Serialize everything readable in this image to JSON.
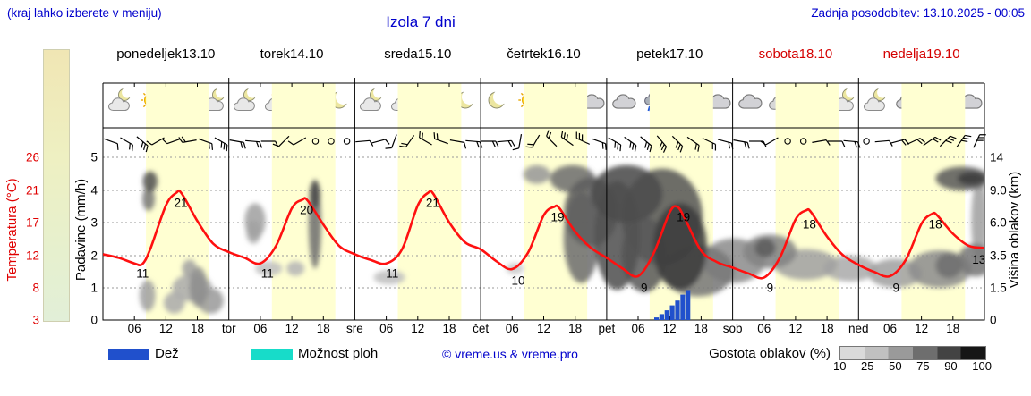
{
  "header": {
    "hint": "(kraj lahko izberete v meniju)",
    "title": "Izola 7 dni",
    "updated": "Zadnja posodobitev: 13.10.2025 - 00:05"
  },
  "left_scale": {
    "label": "Temperatura (°C)",
    "ticks": [
      "26",
      "21",
      "17",
      "12",
      "8",
      "3"
    ]
  },
  "precip_axis": {
    "label": "Padavine (mm/h)",
    "ticks": [
      "5",
      "4",
      "3",
      "2",
      "1",
      "0"
    ]
  },
  "cloud_axis": {
    "label": "Višina oblakov (km)",
    "ticks": [
      "14",
      "9.0",
      "6.0",
      "3.5",
      "1.5",
      "0"
    ]
  },
  "time_axis": {
    "hour_ticks": [
      "06",
      "12",
      "18"
    ],
    "day_abbrevs": [
      "tor",
      "sre",
      "čet",
      "pet",
      "sob",
      "ned"
    ]
  },
  "days": [
    {
      "name": "ponedeljek",
      "date": "13.10",
      "weekend": false,
      "icons": [
        "cloud-moon",
        "sun",
        "sun",
        "cloud-moon"
      ]
    },
    {
      "name": "torek",
      "date": "14.10",
      "weekend": false,
      "icons": [
        "cloud-moon",
        "sun-cloud",
        "sun-cloud",
        "moon"
      ]
    },
    {
      "name": "sreda",
      "date": "15.10",
      "weekend": false,
      "icons": [
        "cloud-moon",
        "sun-cloud",
        "sun",
        "moon"
      ]
    },
    {
      "name": "četrtek",
      "date": "16.10",
      "weekend": false,
      "icons": [
        "moon",
        "sun",
        "sun-cloud",
        "cloud"
      ]
    },
    {
      "name": "petek",
      "date": "17.10",
      "weekend": false,
      "icons": [
        "cloud",
        "rain",
        "rain",
        "cloud"
      ]
    },
    {
      "name": "sobota",
      "date": "18.10",
      "weekend": true,
      "icons": [
        "cloud",
        "cloud-sun",
        "cloud",
        "cloud-moon"
      ]
    },
    {
      "name": "nedelja",
      "date": "19.10",
      "weekend": true,
      "icons": [
        "cloud-moon",
        "cloud",
        "cloud-sun",
        "cloud"
      ]
    }
  ],
  "legend": {
    "rain": "Dež",
    "showers": "Možnost ploh",
    "copyright": "© vreme.us & vreme.pro",
    "cloud_density": "Gostota oblakov (%)",
    "density_ticks": [
      "10",
      "25",
      "50",
      "75",
      "90",
      "100"
    ]
  },
  "colors": {
    "accent_blue": "#0000CC",
    "weekend_red": "#D40000",
    "temp_red": "#FF1010",
    "rain_blue": "#2050CC",
    "shower_cyan": "#17DCC9",
    "day_band_yellow": "#FFFFD2"
  },
  "chart_data": {
    "type": "line",
    "title": "Izola 7 dni",
    "x_unit": "hours from Mon 13.10 00:00 (7 days, 24 h each)",
    "grid": true,
    "temperature": {
      "unit": "°C",
      "axis_range": [
        3,
        26
      ],
      "hours": [
        0,
        3,
        6,
        7.5,
        9,
        12,
        14,
        15,
        18,
        21,
        24,
        27,
        30,
        33,
        36,
        38,
        39,
        42,
        45,
        48,
        51,
        54,
        57,
        60,
        62,
        63,
        66,
        69,
        72,
        75,
        78,
        81,
        84,
        86,
        87,
        90,
        93,
        96,
        99,
        102,
        105,
        108,
        109.5,
        111,
        114,
        117,
        120,
        123,
        126,
        129,
        132,
        134,
        135,
        138,
        141,
        144,
        147,
        150,
        153,
        156,
        158,
        159,
        162,
        165,
        168
      ],
      "values": [
        12.3,
        11.8,
        11.0,
        10.9,
        13.0,
        19.2,
        21.0,
        20.9,
        17.0,
        13.8,
        12.6,
        11.8,
        11.0,
        13.5,
        18.8,
        20.0,
        19.9,
        16.5,
        13.5,
        12.3,
        11.5,
        11.0,
        13.0,
        19.2,
        21.0,
        20.8,
        16.8,
        14.0,
        13.0,
        11.3,
        10.2,
        12.5,
        17.8,
        19.0,
        18.8,
        15.5,
        13.2,
        11.8,
        10.3,
        9.2,
        12.5,
        18.2,
        19.0,
        17.2,
        12.8,
        11.2,
        10.4,
        9.6,
        9.0,
        11.8,
        17.2,
        18.5,
        18.2,
        14.8,
        12.2,
        10.8,
        9.8,
        9.2,
        11.5,
        16.6,
        18.0,
        17.8,
        15.2,
        13.5,
        13.2
      ]
    },
    "temp_point_labels": [
      {
        "value": "21",
        "hour": 14.5
      },
      {
        "value": "11",
        "hour": 7.2
      },
      {
        "value": "20",
        "hour": 38.5
      },
      {
        "value": "11",
        "hour": 31
      },
      {
        "value": "21",
        "hour": 62.5
      },
      {
        "value": "11",
        "hour": 54.8
      },
      {
        "value": "19",
        "hour": 86.3
      },
      {
        "value": "10",
        "hour": 78.8
      },
      {
        "value": "19",
        "hour": 110.3
      },
      {
        "value": "9",
        "hour": 102.8
      },
      {
        "value": "18",
        "hour": 134.3
      },
      {
        "value": "9",
        "hour": 126.8
      },
      {
        "value": "18",
        "hour": 158.3
      },
      {
        "value": "9",
        "hour": 150.8
      },
      {
        "value": "13",
        "hour": 166.6
      }
    ],
    "precipitation": {
      "unit": "mm/h",
      "axis_range": [
        0,
        5
      ],
      "hours": [
        105.5,
        106.5,
        107.5,
        108.5,
        109.5,
        110.5,
        111.5
      ],
      "values": [
        0.08,
        0.18,
        0.3,
        0.45,
        0.6,
        0.78,
        0.92
      ]
    },
    "cloud_cover": {
      "y_unit": "km",
      "density_unit": "%",
      "blobs": [
        [
          9,
          10.4,
          1.4,
          1.5,
          75
        ],
        [
          8.7,
          8.3,
          1.2,
          1.2,
          55
        ],
        [
          8.5,
          1.2,
          1.5,
          0.8,
          35
        ],
        [
          13.6,
          0.8,
          2,
          0.5,
          30
        ],
        [
          17,
          1.6,
          3.8,
          0.75,
          30
        ],
        [
          18.2,
          1.7,
          1.7,
          1.1,
          45
        ],
        [
          16.5,
          2.7,
          1.4,
          0.55,
          35
        ],
        [
          20.5,
          0.9,
          2.5,
          0.6,
          38
        ],
        [
          29,
          6.3,
          2,
          1.5,
          35
        ],
        [
          28.7,
          5.3,
          1.4,
          0.9,
          30
        ],
        [
          31.6,
          2.7,
          2.6,
          0.45,
          20
        ],
        [
          36.7,
          2.7,
          1.7,
          0.45,
          25
        ],
        [
          40.4,
          6.7,
          1.2,
          4.0,
          60
        ],
        [
          40.4,
          8.9,
          1.0,
          1.6,
          78
        ],
        [
          54.6,
          2.15,
          3,
          0.45,
          20
        ],
        [
          78.5,
          2.7,
          1.7,
          0.35,
          15
        ],
        [
          82.7,
          11.4,
          2.6,
          1.4,
          40
        ],
        [
          89.5,
          10.8,
          4.3,
          2,
          60
        ],
        [
          93,
          7.6,
          5.1,
          3.4,
          68
        ],
        [
          91.2,
          5.3,
          3.4,
          3.5,
          60
        ],
        [
          98,
          5.9,
          4.3,
          4.5,
          75
        ],
        [
          99.8,
          9.4,
          6.8,
          3.4,
          78
        ],
        [
          106.6,
          7.6,
          7.7,
          4.7,
          72
        ],
        [
          103.2,
          3.9,
          4.3,
          2.6,
          70
        ],
        [
          110,
          4.6,
          5.1,
          3.2,
          85
        ],
        [
          113.4,
          2.7,
          6.8,
          1.6,
          55
        ],
        [
          120.2,
          3.3,
          6,
          1.5,
          45
        ],
        [
          127.1,
          3.9,
          5.1,
          1.2,
          50
        ],
        [
          126.2,
          4.1,
          2,
          0.7,
          70
        ],
        [
          133.9,
          3.0,
          6,
          1.0,
          35
        ],
        [
          142.4,
          2.7,
          5.1,
          0.8,
          30
        ],
        [
          151,
          2.4,
          5.1,
          0.9,
          35
        ],
        [
          159.5,
          2.7,
          6,
          1.2,
          45
        ],
        [
          161.2,
          2.9,
          2.5,
          0.8,
          60
        ],
        [
          163.8,
          10.8,
          5.1,
          1.8,
          70
        ],
        [
          165.5,
          10.8,
          2.6,
          1.0,
          85
        ],
        [
          166.3,
          3.3,
          3.4,
          1.1,
          55
        ],
        [
          167,
          7,
          1.5,
          4,
          35
        ]
      ]
    },
    "wind_barbs": [
      [
        -160,
        1
      ],
      [
        -150,
        2
      ],
      [
        -140,
        3
      ],
      [
        -30,
        1
      ],
      [
        -20,
        1
      ],
      [
        -10,
        2
      ],
      [
        200,
        2
      ],
      [
        210,
        3
      ],
      [
        190,
        2
      ],
      [
        185,
        2
      ],
      [
        180,
        1
      ],
      [
        -45,
        1
      ],
      [
        -30,
        1
      ],
      [
        0,
        0
      ],
      [
        0,
        0
      ],
      [
        0,
        0
      ],
      [
        175,
        1
      ],
      [
        165,
        1
      ],
      [
        -70,
        1
      ],
      [
        -55,
        2
      ],
      [
        30,
        2
      ],
      [
        20,
        2
      ],
      [
        190,
        1
      ],
      [
        185,
        2
      ],
      [
        180,
        2
      ],
      [
        175,
        2
      ],
      [
        -80,
        1
      ],
      [
        -60,
        2
      ],
      [
        45,
        2
      ],
      [
        35,
        3
      ],
      [
        25,
        3
      ],
      [
        200,
        2
      ],
      [
        210,
        3
      ],
      [
        215,
        3
      ],
      [
        220,
        3
      ],
      [
        230,
        3
      ],
      [
        225,
        3
      ],
      [
        215,
        2
      ],
      [
        205,
        2
      ],
      [
        195,
        2
      ],
      [
        190,
        2
      ],
      [
        180,
        1
      ],
      [
        -30,
        1
      ],
      [
        0,
        0
      ],
      [
        0,
        0
      ],
      [
        170,
        1
      ],
      [
        180,
        1
      ],
      [
        185,
        2
      ],
      [
        0,
        0
      ],
      [
        175,
        1
      ],
      [
        165,
        2
      ],
      [
        155,
        2
      ],
      [
        145,
        2
      ],
      [
        135,
        3
      ],
      [
        125,
        3
      ],
      [
        115,
        3
      ]
    ]
  }
}
